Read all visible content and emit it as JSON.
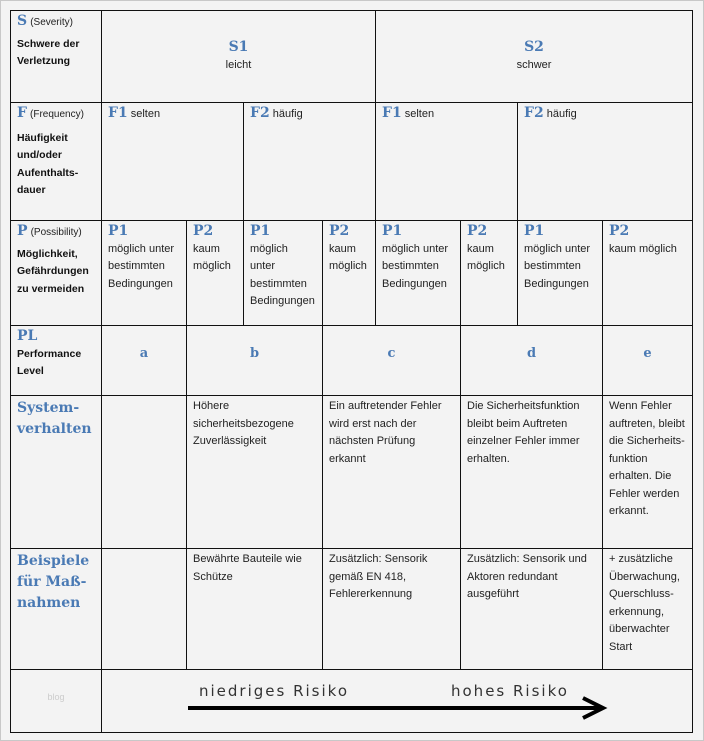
{
  "severity": {
    "letter": "S",
    "en": "(Severity)",
    "de": "Schwere der Verletzung",
    "s1": {
      "code": "S1",
      "text": "leicht"
    },
    "s2": {
      "code": "S2",
      "text": "schwer"
    }
  },
  "frequency": {
    "letter": "F",
    "en": "(Frequency)",
    "de": "Häufigkeit und/oder Aufenthalts-dauer",
    "items": [
      {
        "code": "F1",
        "text": "selten"
      },
      {
        "code": "F2",
        "text": "häufig"
      },
      {
        "code": "F1",
        "text": "selten"
      },
      {
        "code": "F2",
        "text": "häufig"
      }
    ]
  },
  "possibility": {
    "letter": "P",
    "en": "(Possibility)",
    "de": "Möglichkeit, Gefährdungen zu vermeiden",
    "items": [
      {
        "code": "P1",
        "text": "möglich unter bestimmten Bedingungen"
      },
      {
        "code": "P2",
        "text": "kaum möglich"
      },
      {
        "code": "P1",
        "text": "möglich unter bestimmten Bedingungen"
      },
      {
        "code": "P2",
        "text": "kaum möglich"
      },
      {
        "code": "P1",
        "text": "möglich unter bestimmten Bedingungen"
      },
      {
        "code": "P2",
        "text": "kaum möglich"
      },
      {
        "code": "P1",
        "text": "möglich unter bestimmten Bedingungen"
      },
      {
        "code": "P2",
        "text": "kaum möglich"
      }
    ]
  },
  "pl": {
    "letter": "PL",
    "label": "Performance Level",
    "levels": [
      "a",
      "b",
      "c",
      "d",
      "e"
    ]
  },
  "system": {
    "label": "System-verhalten",
    "cells": [
      "",
      "Höhere sicherheitsbezogene Zuverlässigkeit",
      "Ein auftretender Fehler wird erst nach der nächsten Prüfung erkannt",
      "Die Sicherheitsfunktion bleibt beim Auftreten einzelner Fehler immer erhalten.",
      "Wenn Fehler auftreten, bleibt die Sicherheits-funktion erhalten. Die Fehler werden erkannt."
    ]
  },
  "examples": {
    "label": "Beispiele für Maß-nahmen",
    "cells": [
      "",
      "Bewährte Bauteile wie Schütze",
      "Zusätzlich: Sensorik gemäß EN 418, Fehlererkennung",
      "Zusätzlich: Sensorik und Aktoren redundant ausgeführt",
      "+ zusätzliche Überwachung, Querschluss-erkennung, überwachter Start"
    ]
  },
  "footer": {
    "watermark": "blog",
    "low": "niedriges Risiko",
    "high": "hohes Risiko"
  },
  "colors": {
    "accent": "#4a7ab4"
  }
}
